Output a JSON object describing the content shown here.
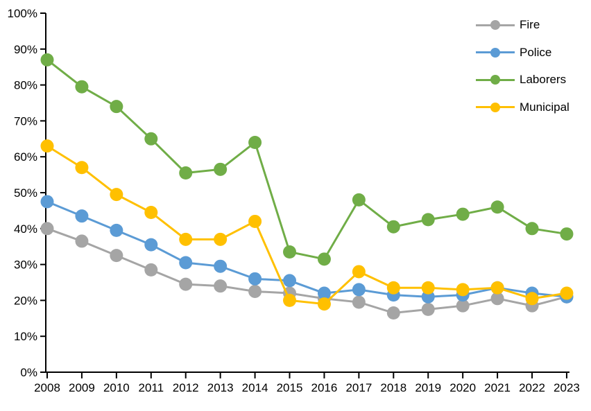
{
  "chart_data": {
    "type": "line",
    "title": "",
    "xlabel": "",
    "ylabel": "",
    "grid": false,
    "legend_position": "top-right",
    "x": [
      2008,
      2009,
      2010,
      2011,
      2012,
      2013,
      2014,
      2015,
      2016,
      2017,
      2018,
      2019,
      2020,
      2021,
      2022,
      2023
    ],
    "x_tick_labels": [
      "2008",
      "2009",
      "2010",
      "2011",
      "2012",
      "2013",
      "2014",
      "2015",
      "2016",
      "2017",
      "2018",
      "2019",
      "2020",
      "2021",
      "2022",
      "2023"
    ],
    "y_axis": {
      "min": 0,
      "max": 100,
      "step": 10,
      "unit": "%"
    },
    "y_tick_labels": [
      "0%",
      "10%",
      "20%",
      "30%",
      "40%",
      "50%",
      "60%",
      "70%",
      "80%",
      "90%",
      "100%"
    ],
    "axis_color": "#000000",
    "series": [
      {
        "name": "Fire",
        "color": "#A5A5A5",
        "values": [
          40,
          36.5,
          32.5,
          28.5,
          24.5,
          24,
          22.5,
          22,
          20.5,
          19.5,
          16.5,
          17.5,
          18.5,
          20.5,
          18.5,
          21
        ]
      },
      {
        "name": "Police",
        "color": "#5B9BD5",
        "values": [
          47.5,
          43.5,
          39.5,
          35.5,
          30.5,
          29.5,
          26,
          25.5,
          22,
          23,
          21.5,
          21,
          21.5,
          23.5,
          22,
          21
        ]
      },
      {
        "name": "Laborers",
        "color": "#70AD47",
        "values": [
          87,
          79.5,
          74,
          65,
          55.5,
          56.5,
          64,
          33.5,
          31.5,
          48,
          40.5,
          42.5,
          44,
          46,
          40,
          38.5
        ]
      },
      {
        "name": "Municipal",
        "color": "#FFC000",
        "values": [
          63,
          57,
          49.5,
          44.5,
          37,
          37,
          42,
          20,
          19,
          28,
          23.5,
          23.5,
          23,
          23.5,
          20.5,
          22
        ]
      }
    ]
  }
}
